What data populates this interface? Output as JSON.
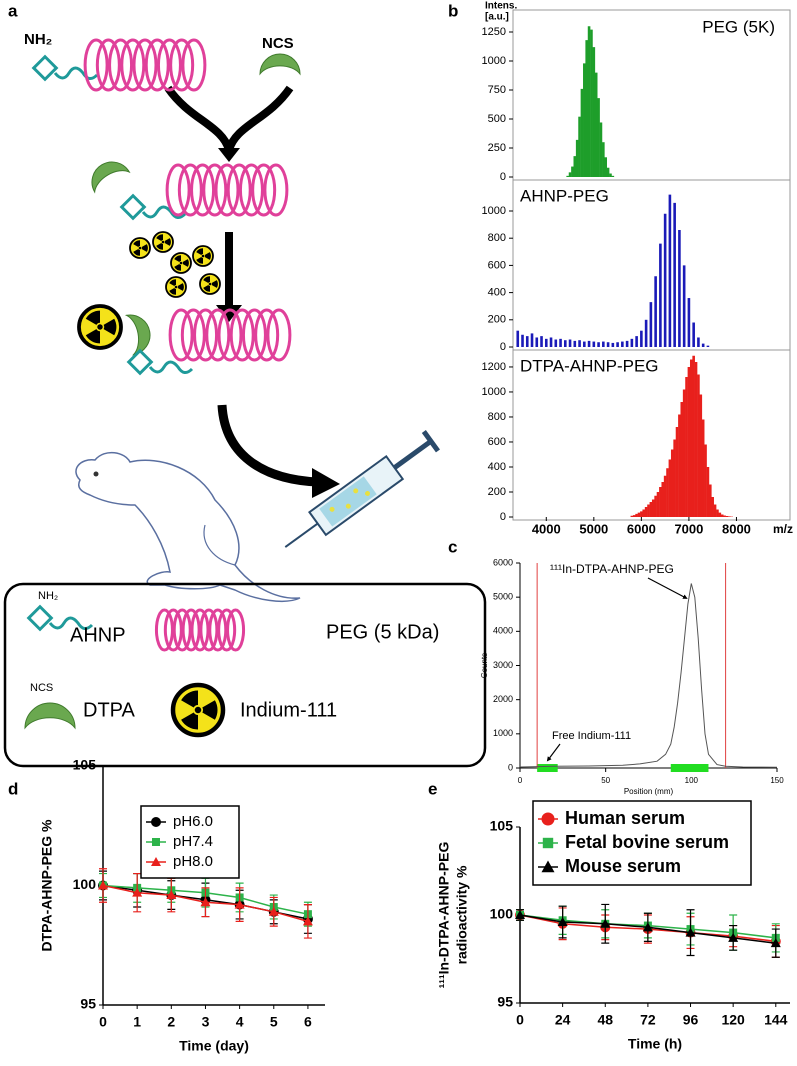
{
  "diagram": {
    "panel": "a",
    "nh2": "NH₂",
    "ncs": "NCS",
    "legend": {
      "ahnp_tag": "NH₂",
      "ahnp": "AHNP",
      "peg": "PEG (5 kDa)",
      "dtpa_tag": "NCS",
      "dtpa": "DTPA",
      "indium": "Indium-111"
    }
  },
  "chart_data": [
    {
      "type": "spectrum",
      "panel": "b",
      "title": "PEG (5K)",
      "ylabel": [
        "Intens.",
        "[a.u.]"
      ],
      "color": "#1e9e2a",
      "x": [
        4450,
        4500,
        4550,
        4600,
        4650,
        4700,
        4750,
        4800,
        4850,
        4900,
        4950,
        5000,
        5050,
        5100,
        5150,
        5200,
        5250,
        5300,
        5350,
        5400
      ],
      "values": [
        10,
        40,
        90,
        180,
        320,
        520,
        760,
        980,
        1180,
        1300,
        1270,
        1120,
        900,
        680,
        470,
        300,
        170,
        80,
        30,
        10
      ],
      "xlim": [
        3300,
        9000
      ],
      "ylim": [
        0,
        1400
      ],
      "yticks": [
        0,
        250,
        500,
        750,
        1000,
        1250
      ]
    },
    {
      "type": "spectrum",
      "title": "AHNP-PEG",
      "color": "#1a1ab8",
      "x": [
        3400,
        3500,
        3600,
        3700,
        3800,
        3900,
        4000,
        4100,
        4200,
        4300,
        4400,
        4500,
        4600,
        4700,
        4800,
        4900,
        5000,
        5100,
        5200,
        5300,
        5400,
        5500,
        5600,
        5700,
        5800,
        5900,
        6000,
        6100,
        6200,
        6300,
        6400,
        6500,
        6600,
        6700,
        6800,
        6900,
        7000,
        7100,
        7200,
        7300,
        7400
      ],
      "values": [
        120,
        90,
        80,
        100,
        70,
        80,
        60,
        70,
        55,
        60,
        50,
        55,
        45,
        50,
        40,
        45,
        40,
        35,
        40,
        35,
        30,
        35,
        40,
        45,
        60,
        80,
        120,
        200,
        330,
        520,
        760,
        980,
        1120,
        1060,
        860,
        600,
        360,
        180,
        70,
        25,
        10
      ],
      "xlim": [
        3300,
        9000
      ],
      "ylim": [
        0,
        1200
      ],
      "yticks": [
        0,
        200,
        400,
        600,
        800,
        1000
      ]
    },
    {
      "type": "spectrum",
      "title": "DTPA-AHNP-PEG",
      "color": "#e8201c",
      "xlabel": "m/z",
      "x": [
        5800,
        5850,
        5900,
        5950,
        6000,
        6050,
        6100,
        6150,
        6200,
        6250,
        6300,
        6350,
        6400,
        6450,
        6500,
        6550,
        6600,
        6650,
        6700,
        6750,
        6800,
        6850,
        6900,
        6950,
        7000,
        7050,
        7100,
        7150,
        7200,
        7250,
        7300,
        7350,
        7400,
        7450,
        7500,
        7550,
        7600,
        7650,
        7700,
        7750,
        7800,
        7850,
        7900
      ],
      "values": [
        10,
        15,
        25,
        35,
        45,
        60,
        80,
        100,
        120,
        140,
        170,
        200,
        240,
        280,
        330,
        390,
        460,
        540,
        620,
        720,
        820,
        920,
        1020,
        1120,
        1200,
        1260,
        1290,
        1240,
        1140,
        980,
        780,
        580,
        400,
        260,
        160,
        100,
        60,
        35,
        20,
        12,
        8,
        5,
        3
      ],
      "xlim": [
        3300,
        9000
      ],
      "xticks": [
        4000,
        5000,
        6000,
        7000,
        8000
      ],
      "ylim": [
        0,
        1350
      ],
      "yticks": [
        0,
        200,
        400,
        600,
        800,
        1000,
        1200
      ]
    },
    {
      "type": "line",
      "panel": "c",
      "ylabel": "Counts",
      "xlabel": "Position (mm)",
      "color": "#555555",
      "annotations": [
        "¹¹¹In-DTPA-AHNP-PEG",
        "Free Indium-111"
      ],
      "markers": [
        10,
        120
      ],
      "regions": [
        [
          10,
          22
        ],
        [
          88,
          110
        ]
      ],
      "x": [
        0,
        10,
        20,
        40,
        60,
        70,
        80,
        85,
        88,
        90,
        92,
        94,
        96,
        98,
        100,
        102,
        104,
        106,
        108,
        110,
        115,
        120,
        130,
        150
      ],
      "values": [
        30,
        40,
        50,
        60,
        80,
        120,
        200,
        400,
        700,
        1200,
        1900,
        2800,
        3800,
        4800,
        5400,
        5000,
        3800,
        2300,
        1000,
        400,
        100,
        50,
        30,
        20
      ],
      "xlim": [
        0,
        150
      ],
      "xticks": [
        0,
        50,
        100,
        150
      ],
      "ylim": [
        0,
        6000
      ],
      "yticks": [
        0,
        1000,
        2000,
        3000,
        4000,
        5000,
        6000
      ]
    },
    {
      "type": "line",
      "panel": "d",
      "ylabel": "DTPA-AHNP-PEG %",
      "xlabel": "Time (day)",
      "legend": "upper center",
      "x": [
        0,
        1,
        2,
        3,
        4,
        5,
        6
      ],
      "series": [
        {
          "name": "pH6.0",
          "color": "#000000",
          "marker": "circle",
          "values": [
            100,
            99.8,
            99.6,
            99.4,
            99.2,
            98.9,
            98.6
          ],
          "errors": [
            0.6,
            0.7,
            0.6,
            0.7,
            0.6,
            0.5,
            0.6
          ]
        },
        {
          "name": "pH7.4",
          "color": "#2db34a",
          "marker": "square",
          "values": [
            100,
            99.9,
            99.8,
            99.7,
            99.5,
            99.1,
            98.8
          ],
          "errors": [
            0.5,
            0.6,
            0.5,
            0.6,
            0.6,
            0.5,
            0.5
          ]
        },
        {
          "name": "pH8.0",
          "color": "#e8201c",
          "marker": "triangle",
          "values": [
            100,
            99.7,
            99.6,
            99.3,
            99.2,
            98.9,
            98.5
          ],
          "errors": [
            0.7,
            0.8,
            0.7,
            0.6,
            0.7,
            0.6,
            0.7
          ]
        }
      ],
      "xlim": [
        0,
        6.5
      ],
      "xticks": [
        0,
        1,
        2,
        3,
        4,
        5,
        6
      ],
      "ylim": [
        95,
        105
      ],
      "yticks": [
        95,
        100,
        105
      ]
    },
    {
      "type": "line",
      "panel": "e",
      "ylabel": [
        "¹¹¹In-DTPA-AHNP-PEG",
        "radioactivity %"
      ],
      "xlabel": "Time (h)",
      "legend": "upper center",
      "x": [
        0,
        24,
        48,
        72,
        96,
        120,
        144
      ],
      "series": [
        {
          "name": "Human serum",
          "color": "#e8201c",
          "marker": "circle",
          "values": [
            100,
            99.5,
            99.3,
            99.2,
            99.0,
            98.8,
            98.5
          ],
          "errors": [
            0.3,
            0.9,
            0.7,
            0.8,
            0.9,
            0.6,
            0.9
          ]
        },
        {
          "name": "Fetal bovine serum",
          "color": "#2db34a",
          "marker": "square",
          "values": [
            100,
            99.7,
            99.5,
            99.4,
            99.2,
            99.0,
            98.7
          ],
          "errors": [
            0.3,
            0.8,
            0.8,
            0.7,
            0.9,
            1.0,
            0.8
          ]
        },
        {
          "name": "Mouse serum",
          "color": "#000000",
          "marker": "triangle",
          "values": [
            100,
            99.6,
            99.5,
            99.3,
            99.0,
            98.7,
            98.4
          ],
          "errors": [
            0.3,
            0.9,
            1.1,
            0.8,
            1.3,
            0.7,
            0.8
          ]
        }
      ],
      "xlim": [
        0,
        152
      ],
      "xticks": [
        0,
        24,
        48,
        72,
        96,
        120,
        144
      ],
      "ylim": [
        95,
        105
      ],
      "yticks": [
        95,
        100,
        105
      ]
    }
  ]
}
